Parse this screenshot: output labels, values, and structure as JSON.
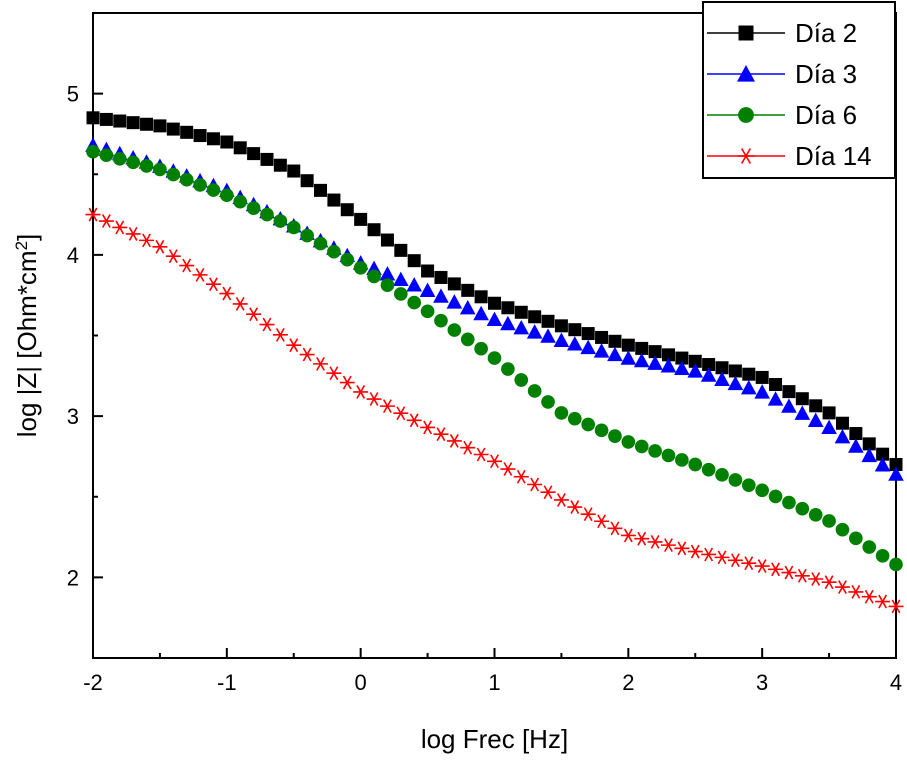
{
  "chart_data": {
    "type": "scatter",
    "title": "",
    "xlabel": "log Frec [Hz]",
    "ylabel": {
      "main": "log |Z| [Ohm*cm",
      "sup": "2",
      "end": "]"
    },
    "xlim": [
      -2,
      4
    ],
    "ylim": [
      1.5,
      5.5
    ],
    "xticks": [
      -2,
      -1,
      0,
      1,
      2,
      3,
      4
    ],
    "yticks": [
      2,
      3,
      4,
      5
    ],
    "grid": false,
    "legend_position": "top-right",
    "series": [
      {
        "name": "Día 2",
        "marker": "square",
        "color": "#000000",
        "x": [
          -2.0,
          -1.5,
          -1.0,
          -0.5,
          0.0,
          0.5,
          1.0,
          1.5,
          2.0,
          2.5,
          3.0,
          3.5,
          4.0
        ],
        "y": [
          4.85,
          4.8,
          4.7,
          4.52,
          4.22,
          3.9,
          3.7,
          3.56,
          3.44,
          3.34,
          3.24,
          3.02,
          2.7
        ]
      },
      {
        "name": "Día 3",
        "marker": "triangle",
        "color": "#0000ff",
        "x": [
          -2.0,
          -1.5,
          -1.0,
          -0.5,
          0.0,
          0.5,
          1.0,
          1.5,
          2.0,
          2.5,
          3.0,
          3.5,
          4.0
        ],
        "y": [
          4.68,
          4.55,
          4.4,
          4.18,
          3.95,
          3.78,
          3.6,
          3.47,
          3.36,
          3.28,
          3.15,
          2.93,
          2.64
        ]
      },
      {
        "name": "Día 6",
        "marker": "circle",
        "color": "#008000",
        "x": [
          -2.0,
          -1.5,
          -1.0,
          -0.5,
          0.0,
          0.5,
          1.0,
          1.5,
          2.0,
          2.5,
          3.0,
          3.5,
          4.0
        ],
        "y": [
          4.64,
          4.53,
          4.37,
          4.17,
          3.92,
          3.65,
          3.36,
          3.02,
          2.84,
          2.7,
          2.54,
          2.35,
          2.08
        ]
      },
      {
        "name": "Día 14",
        "marker": "asterisk",
        "color": "#ff0000",
        "x": [
          -2.0,
          -1.5,
          -1.0,
          -0.5,
          0.0,
          0.5,
          1.0,
          1.5,
          2.0,
          2.5,
          3.0,
          3.5,
          4.0
        ],
        "y": [
          4.25,
          4.05,
          3.76,
          3.44,
          3.15,
          2.93,
          2.72,
          2.48,
          2.26,
          2.16,
          2.07,
          1.97,
          1.82
        ]
      }
    ]
  }
}
